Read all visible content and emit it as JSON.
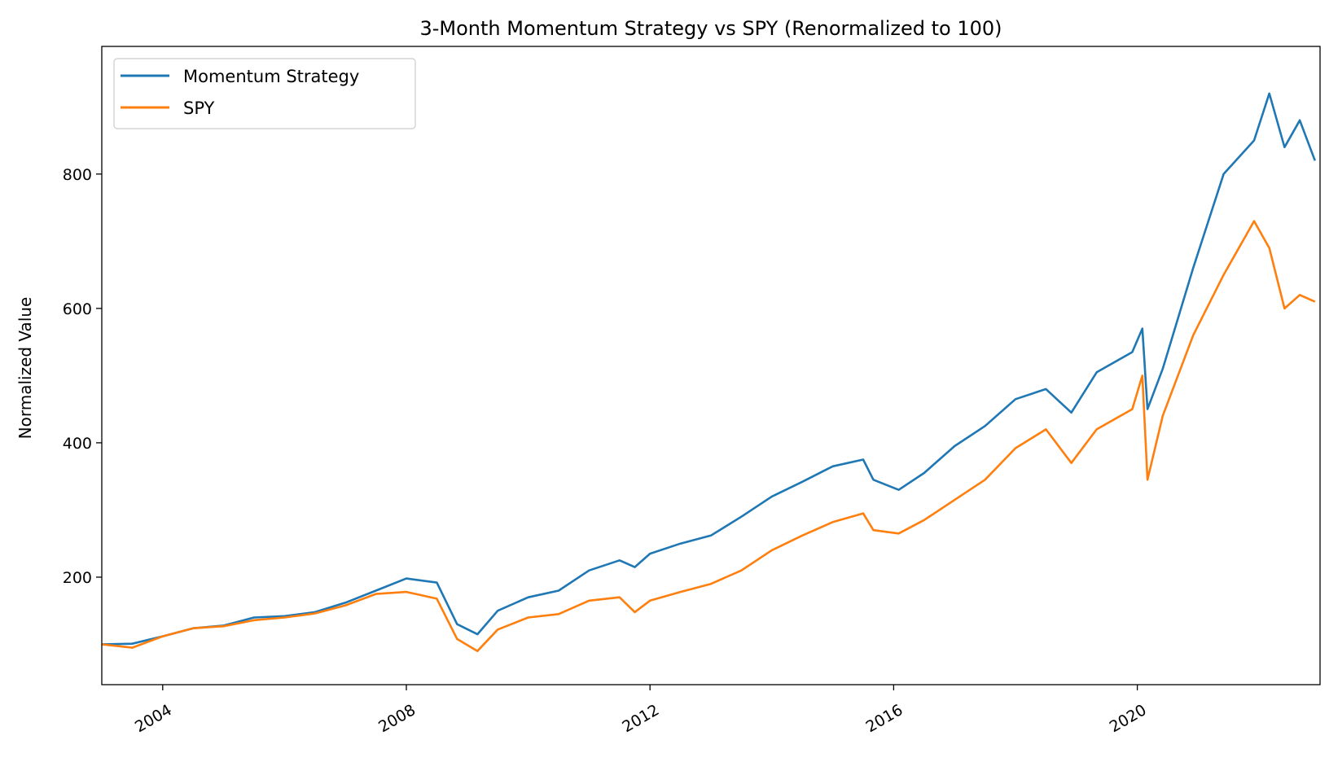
{
  "chart_data": {
    "type": "line",
    "title": "3-Month Momentum Strategy vs SPY (Renormalized to 100)",
    "xlabel": "",
    "ylabel": "Normalized Value",
    "x_tick_labels": [
      "2004",
      "2008",
      "2012",
      "2016",
      "2020"
    ],
    "y_tick_labels": [
      "200",
      "400",
      "600",
      "800"
    ],
    "y_ticks": [
      200,
      400,
      600,
      800
    ],
    "xlim": [
      "2003-01",
      "2023-01"
    ],
    "ylim": [
      40,
      990
    ],
    "grid": false,
    "legend_position": "upper-left",
    "x": [
      "2003-01",
      "2003-07",
      "2004-01",
      "2004-07",
      "2005-01",
      "2005-07",
      "2006-01",
      "2006-07",
      "2007-01",
      "2007-07",
      "2008-01",
      "2008-07",
      "2008-11",
      "2009-03",
      "2009-07",
      "2010-01",
      "2010-07",
      "2011-01",
      "2011-07",
      "2011-10",
      "2012-01",
      "2012-07",
      "2013-01",
      "2013-07",
      "2014-01",
      "2014-07",
      "2015-01",
      "2015-07",
      "2015-09",
      "2016-02",
      "2016-07",
      "2017-01",
      "2017-07",
      "2018-01",
      "2018-07",
      "2018-12",
      "2019-05",
      "2019-12",
      "2020-02",
      "2020-03",
      "2020-06",
      "2020-12",
      "2021-06",
      "2021-12",
      "2022-03",
      "2022-06",
      "2022-09",
      "2022-12"
    ],
    "series": [
      {
        "name": "Momentum Strategy",
        "color": "#1f77b4",
        "values": [
          100,
          101,
          112,
          124,
          128,
          140,
          142,
          148,
          162,
          180,
          198,
          192,
          130,
          115,
          150,
          170,
          180,
          210,
          225,
          215,
          235,
          250,
          262,
          290,
          320,
          342,
          365,
          375,
          345,
          330,
          355,
          395,
          425,
          465,
          480,
          445,
          505,
          535,
          570,
          450,
          510,
          660,
          800,
          850,
          920,
          840,
          880,
          820
        ]
      },
      {
        "name": "SPY",
        "color": "#ff7f0e",
        "values": [
          100,
          95,
          112,
          124,
          127,
          136,
          140,
          146,
          158,
          175,
          178,
          168,
          108,
          90,
          122,
          140,
          145,
          165,
          170,
          148,
          165,
          178,
          190,
          210,
          240,
          262,
          282,
          295,
          270,
          265,
          285,
          315,
          345,
          392,
          420,
          370,
          420,
          450,
          500,
          345,
          440,
          560,
          650,
          730,
          690,
          600,
          620,
          610
        ]
      }
    ]
  }
}
